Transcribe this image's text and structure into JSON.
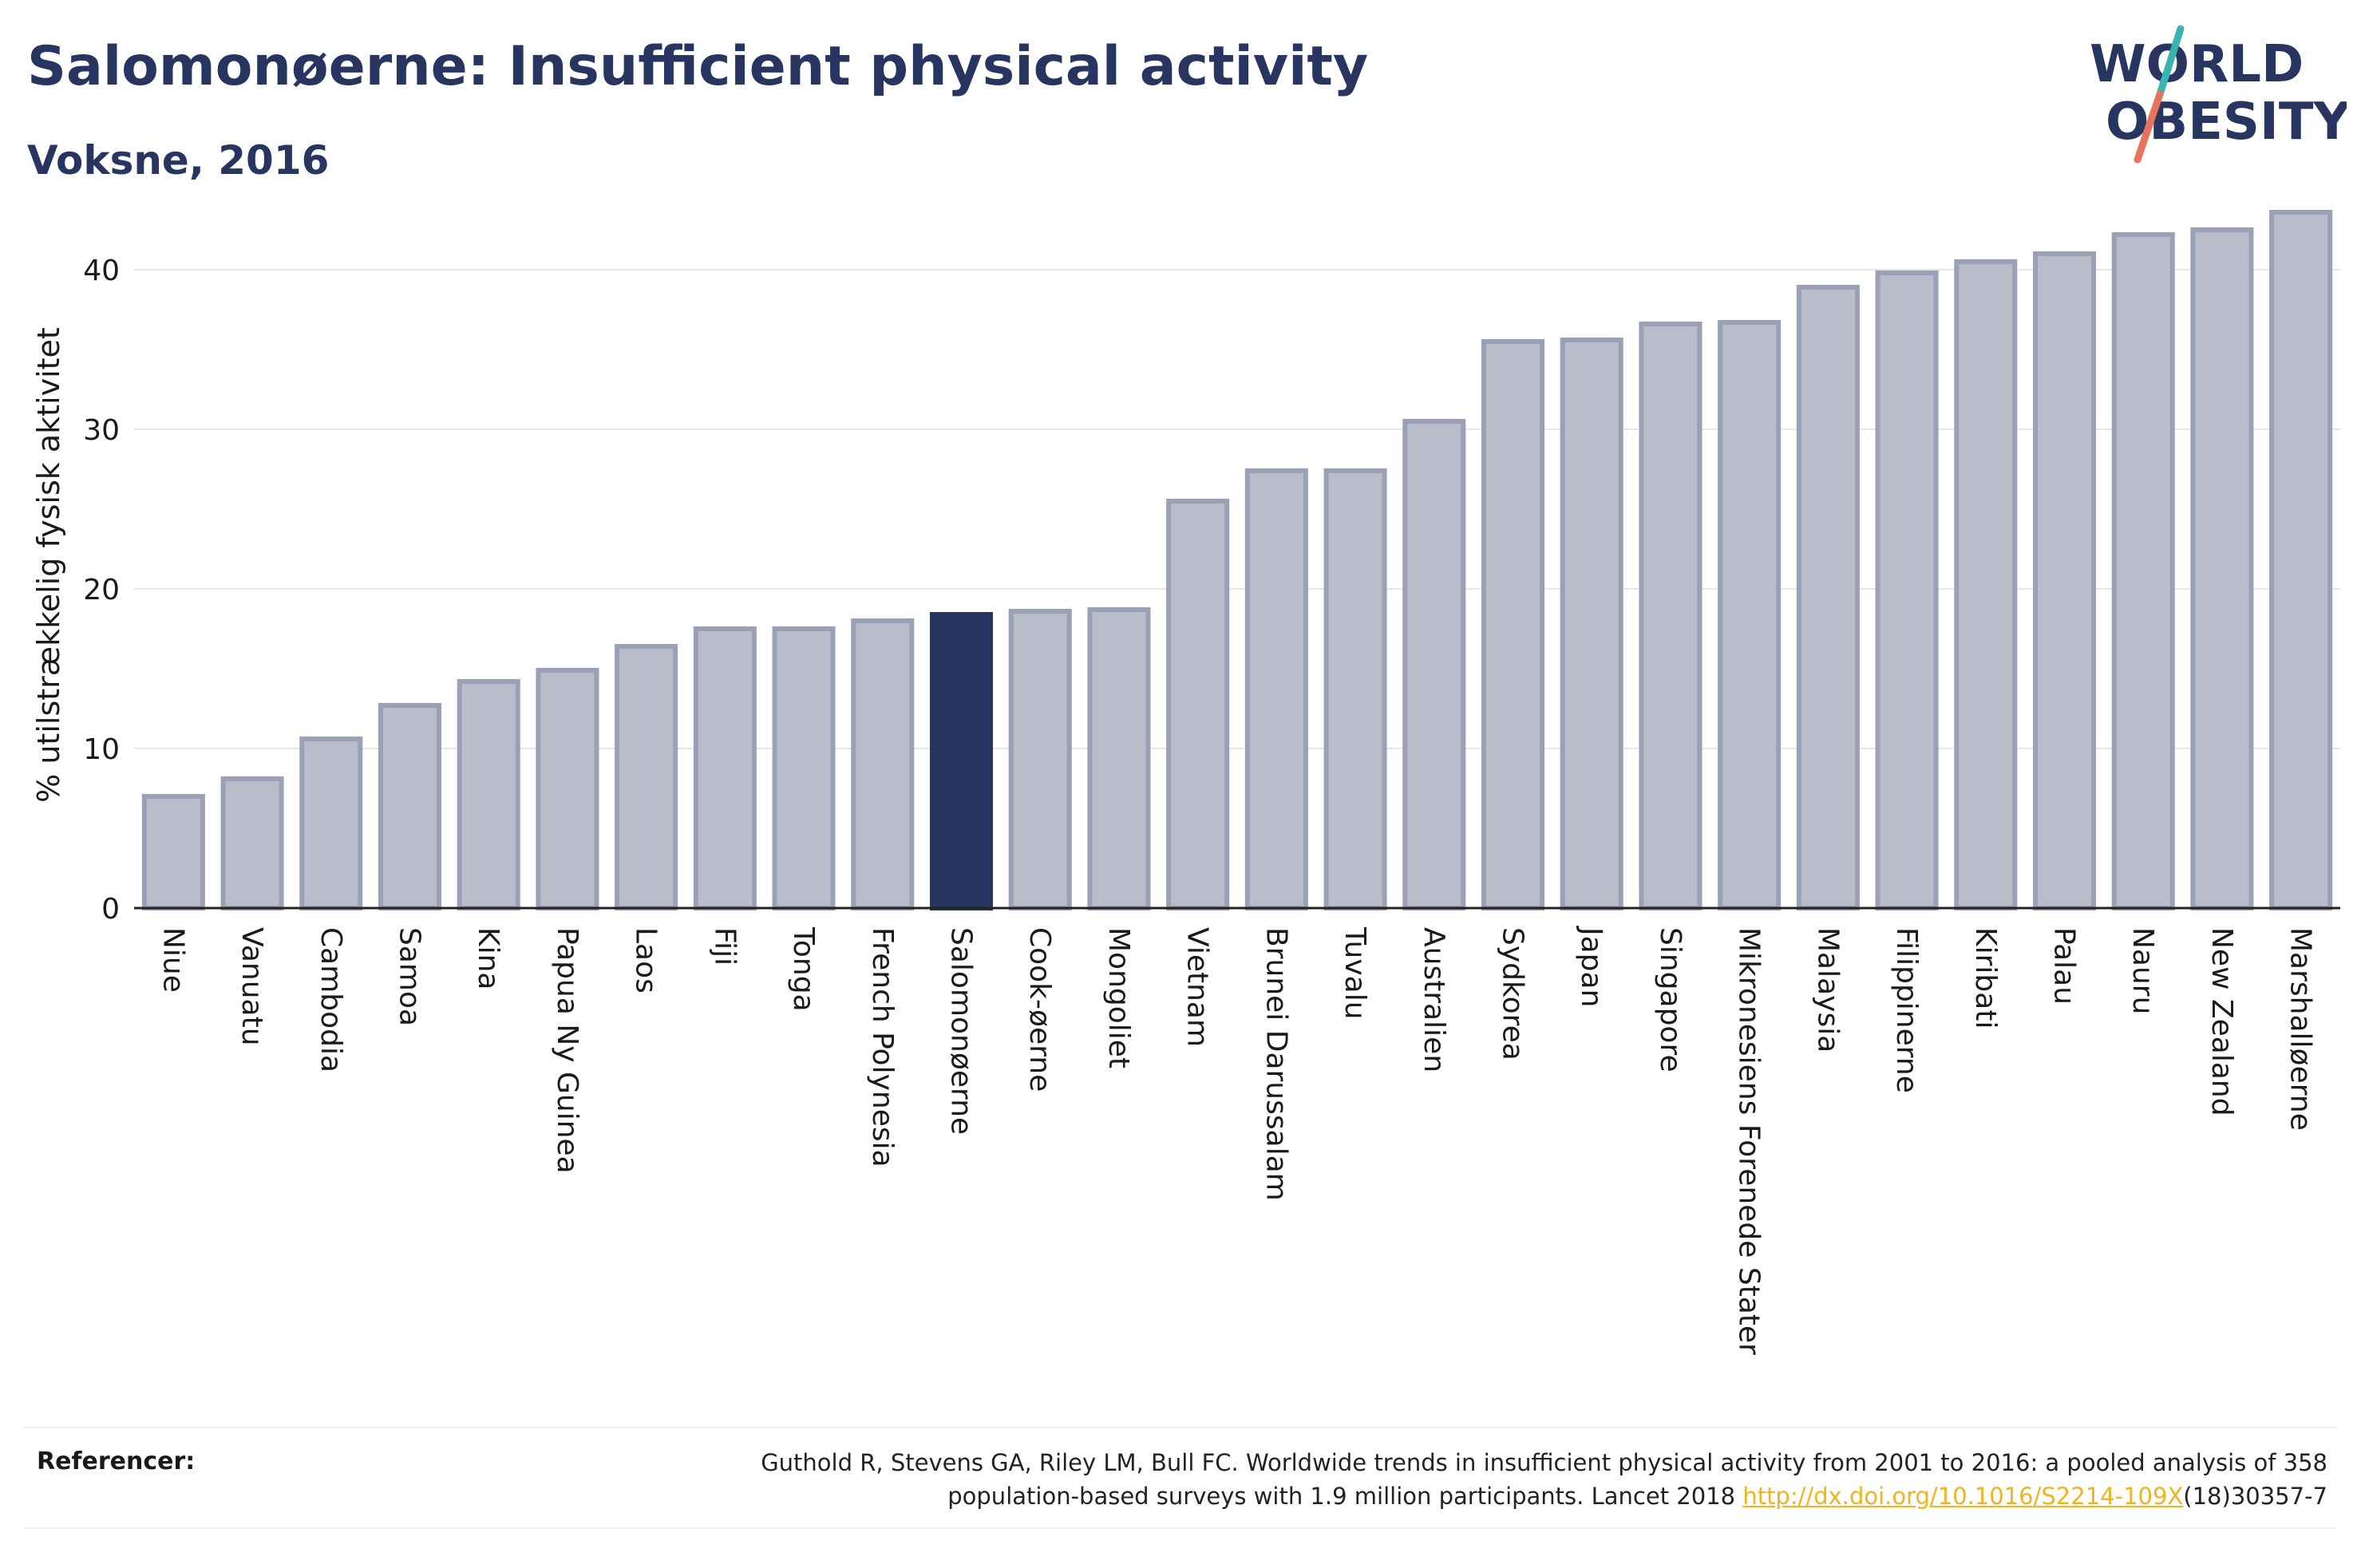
{
  "header": {
    "title": "Salomonøerne: Insufficient physical activity",
    "subtitle": "Voksne, 2016"
  },
  "logo": {
    "line1": "WORLD",
    "line2": "OBESITY"
  },
  "colors": {
    "bar_fill": "#b9bdca",
    "bar_stroke": "#9aa0b5",
    "highlight": "#283561",
    "title": "#283561",
    "link": "#f0b323",
    "logo_teal": "#3ab4b0",
    "logo_coral": "#e8735d"
  },
  "chart_data": {
    "type": "bar",
    "ylabel": "% utilstrækkelig fysisk aktivitet",
    "xlabel": "",
    "ylim": [
      0,
      45
    ],
    "yticks": [
      0,
      10,
      20,
      30,
      40
    ],
    "grid": true,
    "highlight": "Salomonøerne",
    "categories": [
      "Niue",
      "Vanuatu",
      "Cambodia",
      "Samoa",
      "Kina",
      "Papua Ny Guinea",
      "Laos",
      "Fiji",
      "Tonga",
      "French Polynesia",
      "Salomonøerne",
      "Cook-øerne",
      "Mongoliet",
      "Vietnam",
      "Brunei Darussalam",
      "Tuvalu",
      "Australien",
      "Sydkorea",
      "Japan",
      "Singapore",
      "Mikronesiens Forenede Stater",
      "Malaysia",
      "Filippinerne",
      "Kiribati",
      "Palau",
      "Nauru",
      "New Zealand",
      "Marshalløerne"
    ],
    "values": [
      7.0,
      8.1,
      10.6,
      12.7,
      14.2,
      14.9,
      16.4,
      17.5,
      17.5,
      18.0,
      18.4,
      18.6,
      18.7,
      25.5,
      27.4,
      27.4,
      30.5,
      35.5,
      35.6,
      36.6,
      36.7,
      38.9,
      39.8,
      40.5,
      41.0,
      42.2,
      42.5,
      43.6
    ]
  },
  "references": {
    "label": "Referencer:",
    "text_line1": "Guthold R, Stevens GA, Riley LM, Bull FC. Worldwide trends in insufficient physical activity from 2001 to 2016: a pooled analysis of 358",
    "text_line2_prefix": "population-based surveys with 1.9 million participants. Lancet 2018 ",
    "link_text": "http://dx.doi.org/10.1016/S2214-109X",
    "text_line2_suffix": "(18)30357-7"
  }
}
